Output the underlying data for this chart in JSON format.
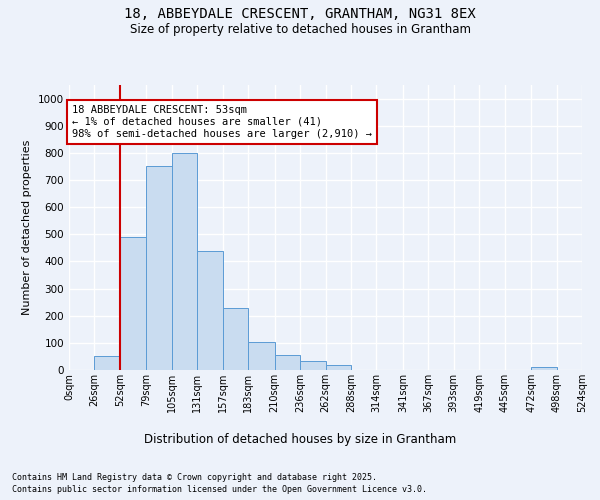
{
  "title_line1": "18, ABBEYDALE CRESCENT, GRANTHAM, NG31 8EX",
  "title_line2": "Size of property relative to detached houses in Grantham",
  "xlabel": "Distribution of detached houses by size in Grantham",
  "ylabel": "Number of detached properties",
  "footnote_line1": "Contains HM Land Registry data © Crown copyright and database right 2025.",
  "footnote_line2": "Contains public sector information licensed under the Open Government Licence v3.0.",
  "bin_labels": [
    "0sqm",
    "26sqm",
    "52sqm",
    "79sqm",
    "105sqm",
    "131sqm",
    "157sqm",
    "183sqm",
    "210sqm",
    "236sqm",
    "262sqm",
    "288sqm",
    "314sqm",
    "341sqm",
    "367sqm",
    "393sqm",
    "419sqm",
    "445sqm",
    "472sqm",
    "498sqm",
    "524sqm"
  ],
  "bar_values": [
    0,
    50,
    490,
    750,
    800,
    440,
    230,
    105,
    55,
    35,
    20,
    0,
    0,
    0,
    0,
    0,
    0,
    0,
    10,
    0,
    0
  ],
  "bar_color": "#c9dcf0",
  "bar_edge_color": "#5b9bd5",
  "ylim": [
    0,
    1050
  ],
  "yticks": [
    0,
    100,
    200,
    300,
    400,
    500,
    600,
    700,
    800,
    900,
    1000
  ],
  "property_line_x": 52,
  "annotation_text_line1": "18 ABBEYDALE CRESCENT: 53sqm",
  "annotation_text_line2": "← 1% of detached houses are smaller (41)",
  "annotation_text_line3": "98% of semi-detached houses are larger (2,910) →",
  "annotation_box_facecolor": "#ffffff",
  "annotation_box_edgecolor": "#cc0000",
  "vline_color": "#cc0000",
  "background_color": "#edf2fa",
  "grid_color": "#ffffff",
  "bin_edges": [
    0,
    26,
    52,
    79,
    105,
    131,
    157,
    183,
    210,
    236,
    262,
    288,
    314,
    341,
    367,
    393,
    419,
    445,
    472,
    498,
    524
  ]
}
